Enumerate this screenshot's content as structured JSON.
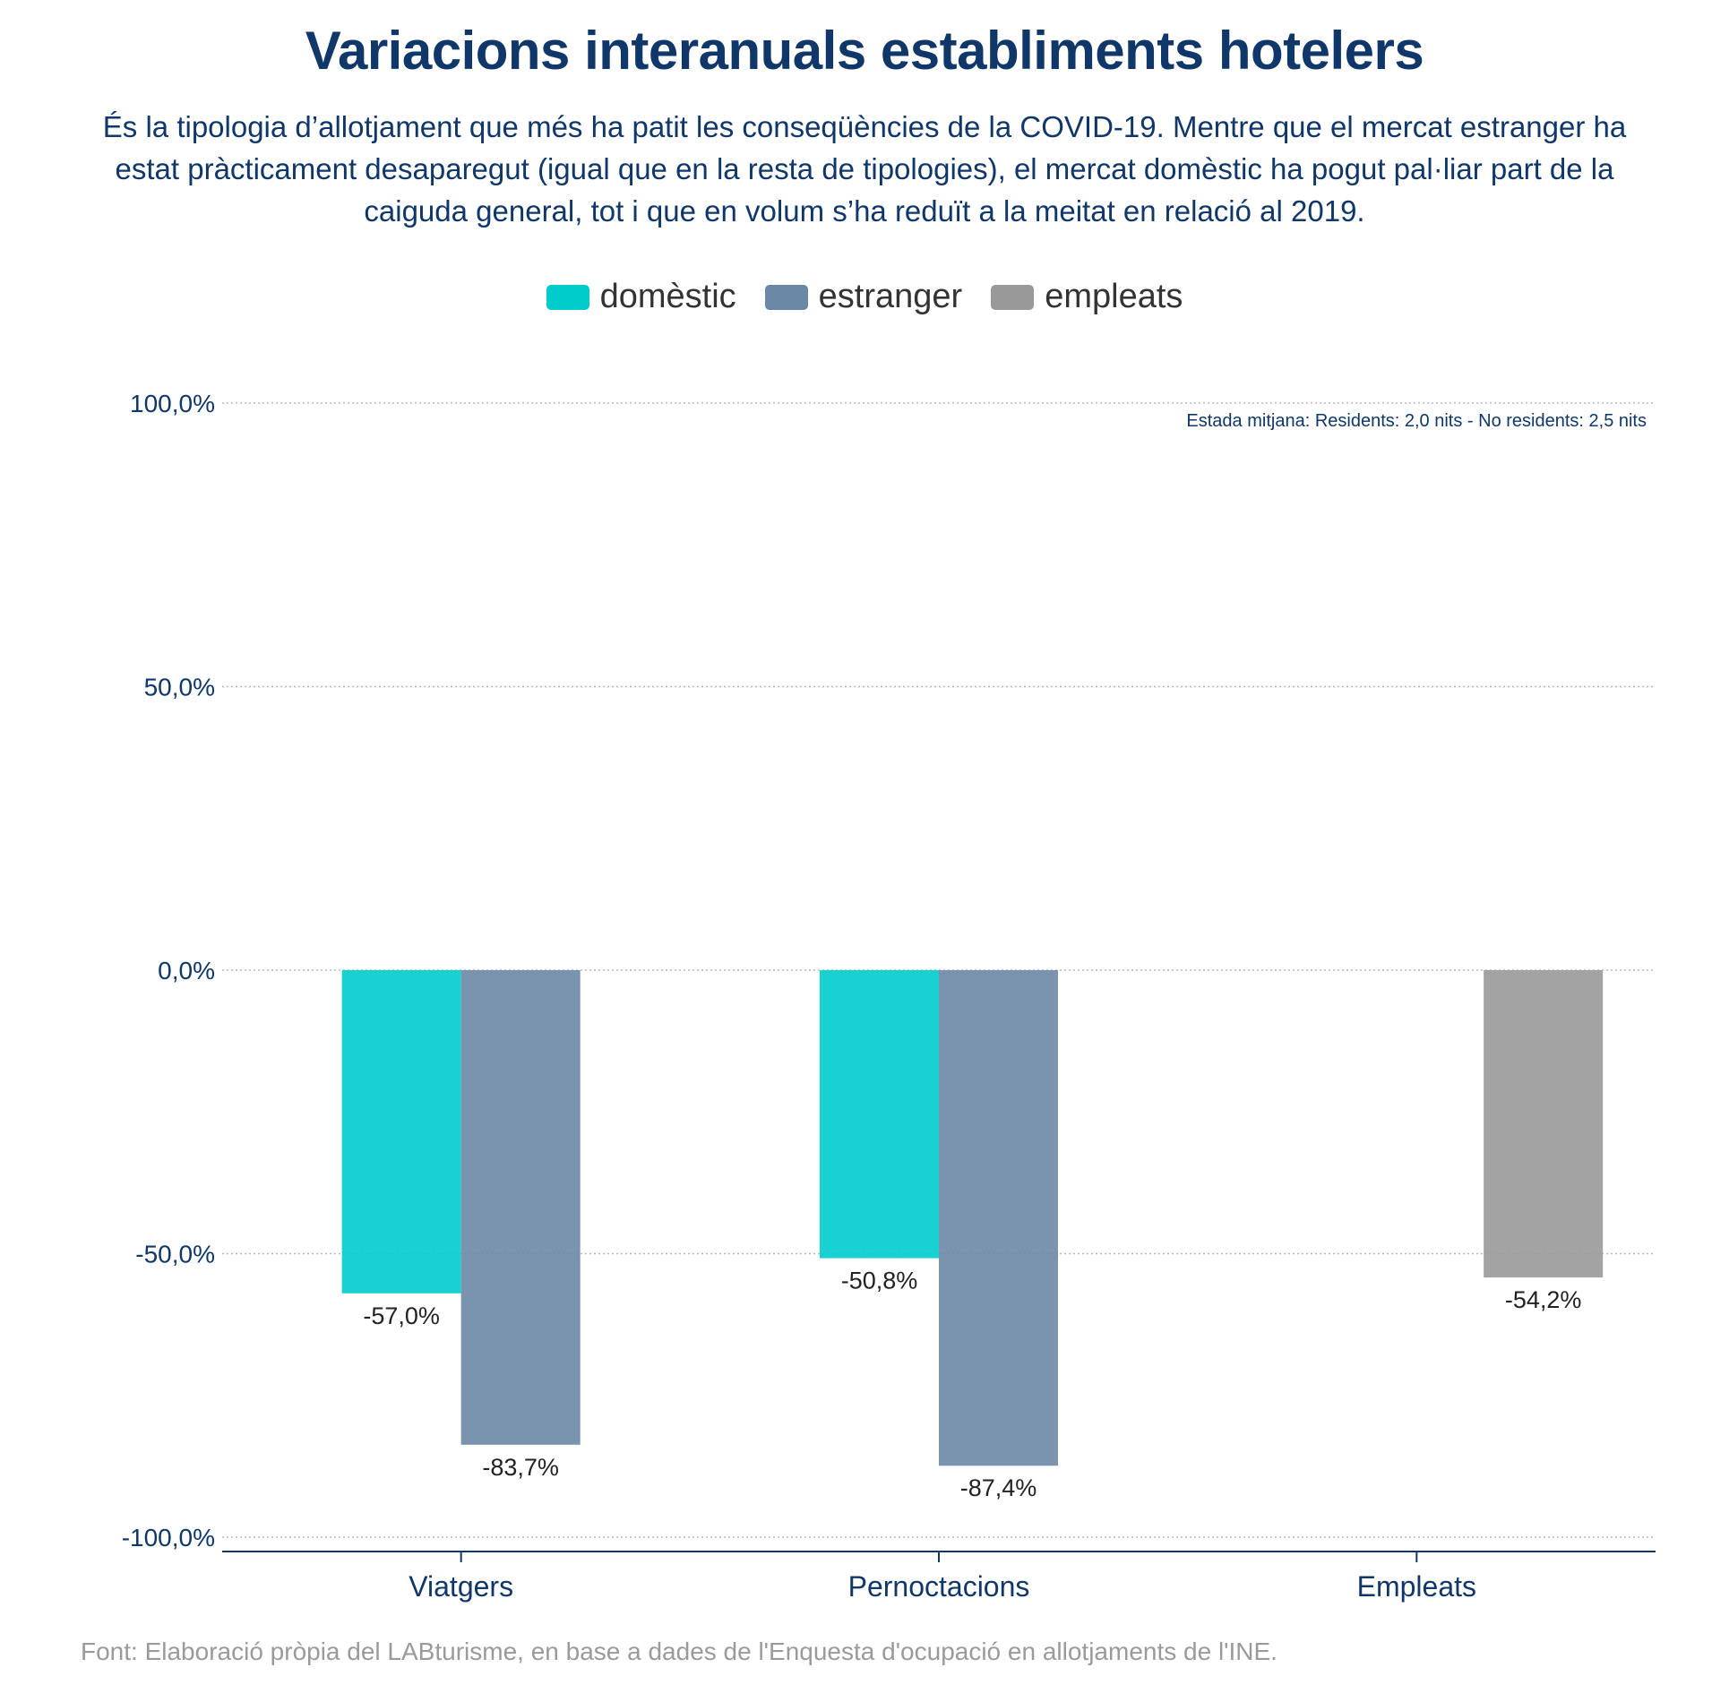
{
  "title": "Variacions interanuals establiments hotelers",
  "subtitle": "És la tipologia d’allotjament que més ha patit les conseqüències de la COVID-19. Mentre que el mercat estranger ha estat pràcticament desaparegut (igual que en la resta de tipologies), el mercat domèstic ha pogut pal·liar part de la caiguda general, tot i que en volum s’ha reduït a la meitat en relació al 2019.",
  "legend": [
    {
      "label": "domèstic",
      "color": "#00cccc"
    },
    {
      "label": "estranger",
      "color": "#6b87a6"
    },
    {
      "label": "empleats",
      "color": "#999999"
    }
  ],
  "annotation": "Estada mitjana: Residents: 2,0 nits - No residents: 2,5 nits",
  "source": "Font: Elaboració pròpia del LABturisme, en base a dades de l'Enquesta d'ocupació en allotjaments de l'INE.",
  "chart_data": {
    "type": "bar",
    "categories": [
      "Viatgers",
      "Pernoctacions",
      "Empleats"
    ],
    "series": [
      {
        "name": "domèstic",
        "color": "#00cccc",
        "values": [
          -57.0,
          -50.8,
          null
        ]
      },
      {
        "name": "estranger",
        "color": "#6b87a6",
        "values": [
          -83.7,
          -87.4,
          null
        ]
      },
      {
        "name": "empleats",
        "color": "#999999",
        "values": [
          null,
          null,
          -54.2
        ]
      }
    ],
    "data_labels": {
      "domèstic": [
        "-57,0%",
        "-50,8%",
        null
      ],
      "estranger": [
        "-83,7%",
        "-87,4%",
        null
      ],
      "empleats": [
        null,
        null,
        "-54,2%"
      ]
    },
    "yticks": [
      100,
      50,
      0,
      -50,
      -100
    ],
    "ytick_labels": [
      "100,0%",
      "50,0%",
      "0,0%",
      "-50,0%",
      "-100,0%"
    ],
    "ylim": [
      -100,
      100
    ],
    "grid": true,
    "legend_position": "top-center"
  }
}
